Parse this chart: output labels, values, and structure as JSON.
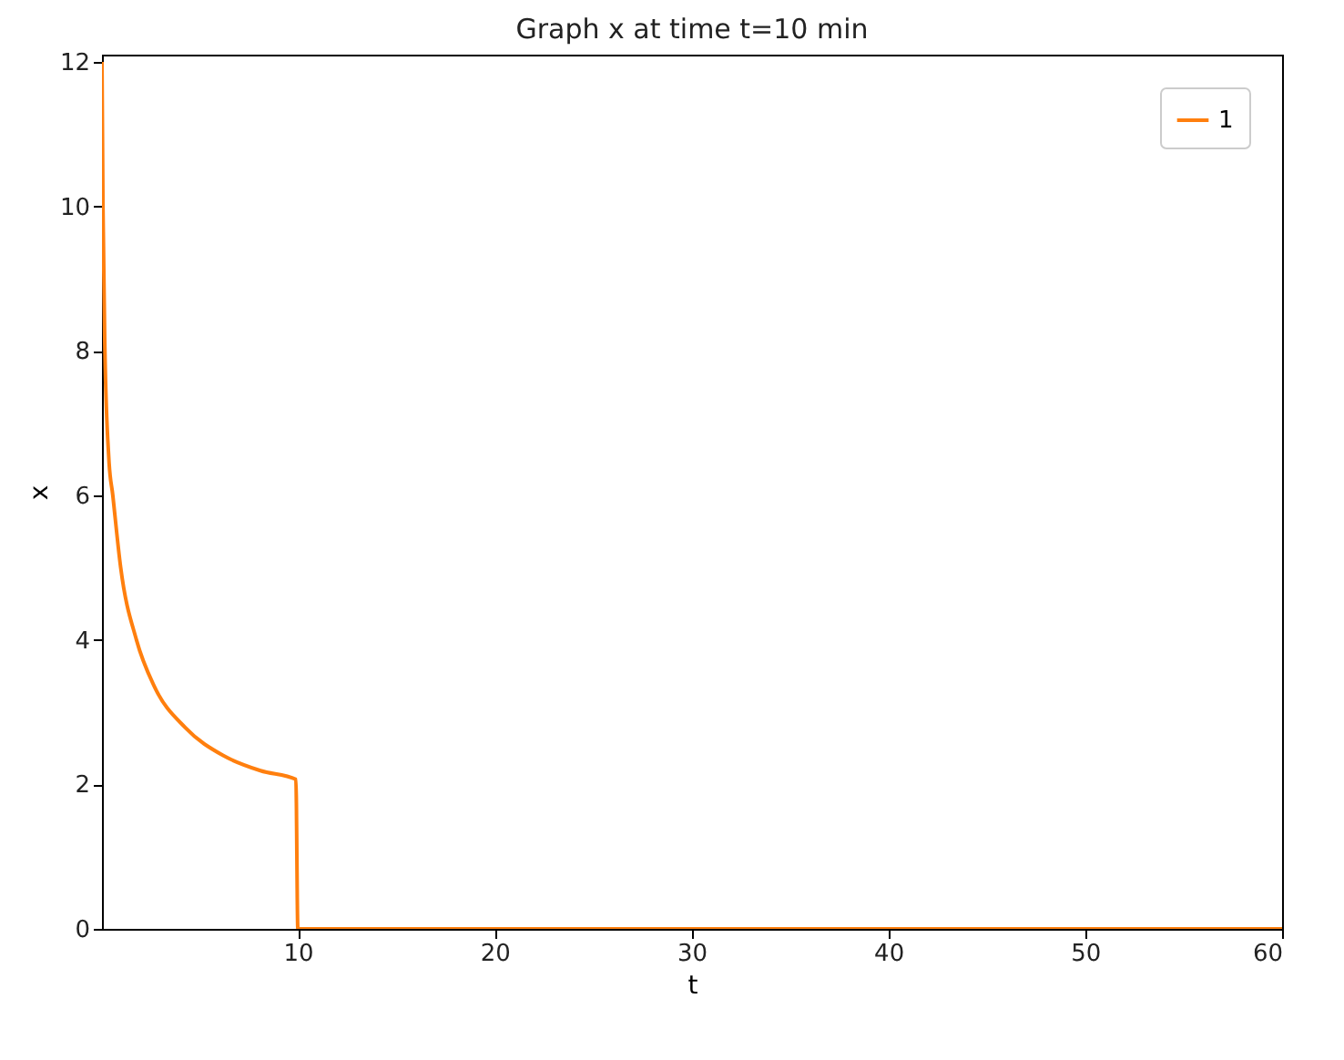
{
  "chart_data": {
    "type": "line",
    "title": "Graph x at time t=10 min",
    "xlabel": "t",
    "ylabel": "x",
    "series": [
      {
        "name": "1",
        "color": "#ff7f0e",
        "x": [
          0.05,
          0.1,
          0.2,
          0.4,
          0.6,
          1,
          1.8,
          2.7,
          4.3,
          6.2,
          8.1,
          9.9,
          10,
          60
        ],
        "values": [
          12,
          10,
          8,
          6.5,
          6,
          5,
          4,
          3.36,
          2.78,
          2.4,
          2.19,
          2.07,
          0,
          0
        ]
      }
    ],
    "xlim": [
      0.05,
      60
    ],
    "xticks": [
      10,
      20,
      30,
      40,
      50,
      60
    ],
    "ylim": [
      0,
      12.1
    ],
    "yticks": [
      0,
      2,
      4,
      6,
      8,
      10,
      12
    ],
    "grid": false,
    "legend": "top right",
    "marker": "none",
    "line_style": "solid"
  }
}
